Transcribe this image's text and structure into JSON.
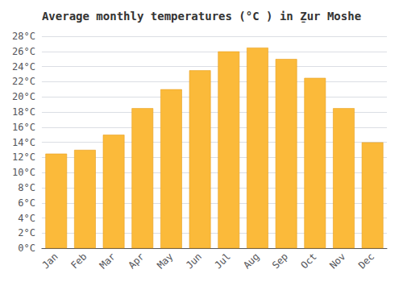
{
  "chart_data": {
    "type": "bar",
    "title": "Average monthly temperatures (°C ) in Ẕur Moshe",
    "categories": [
      "Jan",
      "Feb",
      "Mar",
      "Apr",
      "May",
      "Jun",
      "Jul",
      "Aug",
      "Sep",
      "Oct",
      "Nov",
      "Dec"
    ],
    "values": [
      12.5,
      13.0,
      15.0,
      18.5,
      21.0,
      23.5,
      26.0,
      26.5,
      25.0,
      22.5,
      18.5,
      14.0
    ],
    "color": "#FBBA3A",
    "ylim": [
      0,
      28
    ],
    "yticks": [
      {
        "value": 0,
        "label": "0°C"
      },
      {
        "value": 2,
        "label": "2°C"
      },
      {
        "value": 4,
        "label": "4°C"
      },
      {
        "value": 6,
        "label": "6°C"
      },
      {
        "value": 8,
        "label": "8°C"
      },
      {
        "value": 10,
        "label": "10°C"
      },
      {
        "value": 12,
        "label": "12°C"
      },
      {
        "value": 14,
        "label": "14°C"
      },
      {
        "value": 16,
        "label": "16°C"
      },
      {
        "value": 18,
        "label": "18°C"
      },
      {
        "value": 20,
        "label": "20°C"
      },
      {
        "value": 22,
        "label": "22°C"
      },
      {
        "value": 24,
        "label": "24°C"
      },
      {
        "value": 26,
        "label": "26°C"
      },
      {
        "value": 28,
        "label": "28°C"
      }
    ],
    "grid": true
  }
}
